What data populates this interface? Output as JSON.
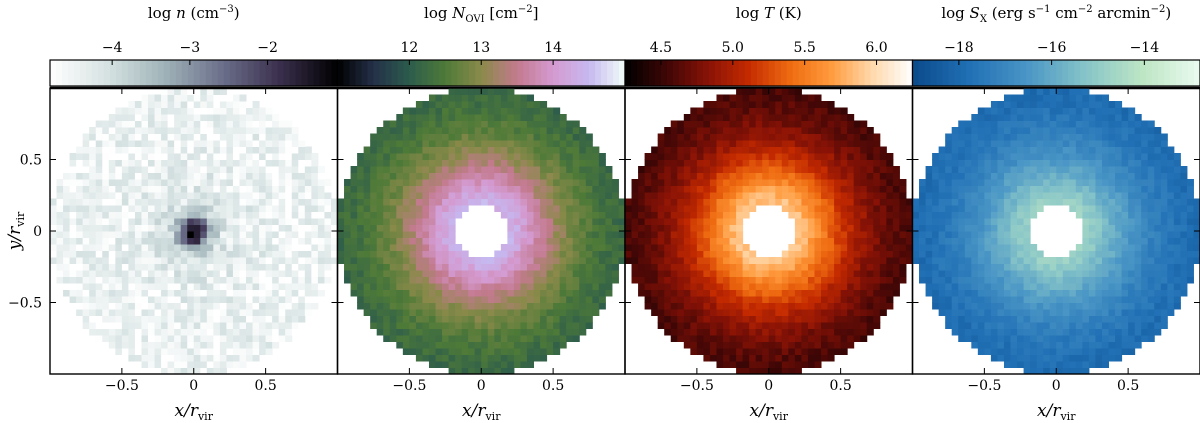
{
  "chart_data": [
    {
      "type": "heatmap",
      "panel": "density",
      "colorbar": {
        "label_parts": [
          "log ",
          "n",
          " (cm",
          "−3",
          ")"
        ],
        "ticks": [
          -4,
          -3,
          -2
        ],
        "tick_labels": [
          "−4",
          "−3",
          "−2"
        ],
        "range": [
          -4.8,
          -1.1
        ],
        "colormap": [
          "#ffffff",
          "#d6e2e2",
          "#9fb2b8",
          "#6b6f8a",
          "#3a2f4d",
          "#000000"
        ]
      },
      "xlabel_parts": [
        "x/r",
        "vir"
      ],
      "ylabel_parts": [
        "y/r",
        "vir"
      ],
      "xlim": [
        -1,
        1
      ],
      "ylim": [
        -1,
        1
      ],
      "xticks": [
        -0.5,
        0,
        0.5
      ],
      "xtick_labels": [
        "−0.5",
        "0",
        "0.5"
      ],
      "yticks": [
        -0.5,
        0,
        0.5
      ],
      "ytick_labels": [
        "−0.5",
        "0",
        "0.5"
      ],
      "disk_radius": 1.0,
      "hole_radius": 0,
      "center_value": -1.3,
      "edge_value": -4.5
    },
    {
      "type": "heatmap",
      "panel": "ovi_column",
      "colorbar": {
        "label_parts": [
          "log ",
          "N",
          "OVI",
          " [cm",
          "−2",
          "]"
        ],
        "ticks": [
          12,
          13,
          14
        ],
        "tick_labels": [
          "12",
          "13",
          "14"
        ],
        "range": [
          11.0,
          15.0
        ],
        "colormap": [
          "#000000",
          "#243048",
          "#2c5c4c",
          "#4e7a38",
          "#8a8a4a",
          "#c37a8e",
          "#d49ad0",
          "#c6b8f0",
          "#f2fff8"
        ]
      },
      "xlabel_parts": [
        "x/r",
        "vir"
      ],
      "xlim": [
        -1,
        1
      ],
      "ylim": [
        -1,
        1
      ],
      "xticks": [
        -0.5,
        0,
        0.5
      ],
      "xtick_labels": [
        "−0.5",
        "0",
        "0.5"
      ],
      "disk_radius": 1.0,
      "hole_radius": 0.19,
      "center_value": 14.4,
      "edge_value": 12.0
    },
    {
      "type": "heatmap",
      "panel": "temperature",
      "colorbar": {
        "label_parts": [
          "log ",
          "T",
          " (K)"
        ],
        "ticks": [
          4.5,
          5.0,
          5.5,
          6.0
        ],
        "tick_labels": [
          "4.5",
          "5.0",
          "5.5",
          "6.0"
        ],
        "range": [
          4.25,
          6.25
        ],
        "colormap": [
          "#000000",
          "#3e0606",
          "#871206",
          "#c42a00",
          "#ee6a10",
          "#ff9a3c",
          "#ffd8aa",
          "#ffffff"
        ]
      },
      "xlabel_parts": [
        "x/r",
        "vir"
      ],
      "xlim": [
        -1,
        1
      ],
      "ylim": [
        -1,
        1
      ],
      "xticks": [
        -0.5,
        0,
        0.5
      ],
      "xtick_labels": [
        "−0.5",
        "0",
        "0.5"
      ],
      "disk_radius": 1.0,
      "hole_radius": 0.19,
      "center_value": 5.9,
      "edge_value": 4.45
    },
    {
      "type": "heatmap",
      "panel": "xray_surface_brightness",
      "colorbar": {
        "label_parts": [
          "log ",
          "S",
          "X",
          " (erg s",
          "−1",
          " cm",
          "−2",
          " arcmin",
          "−2",
          ")"
        ],
        "ticks": [
          -18,
          -16,
          -14
        ],
        "tick_labels": [
          "−18",
          "−16",
          "−14"
        ],
        "range": [
          -19.0,
          -12.8
        ],
        "colormap": [
          "#0a4a8a",
          "#2170b5",
          "#4a96c6",
          "#86c4c8",
          "#bde6c4",
          "#eafaf0"
        ]
      },
      "xlabel_parts": [
        "x/r",
        "vir"
      ],
      "xlim": [
        -1,
        1
      ],
      "ylim": [
        -1,
        1
      ],
      "xticks": [
        -0.5,
        0,
        0.5
      ],
      "xtick_labels": [
        "−0.5",
        "0",
        "0.5"
      ],
      "disk_radius": 1.0,
      "hole_radius": 0.19,
      "center_value": -14.8,
      "edge_value": -18.2
    }
  ]
}
